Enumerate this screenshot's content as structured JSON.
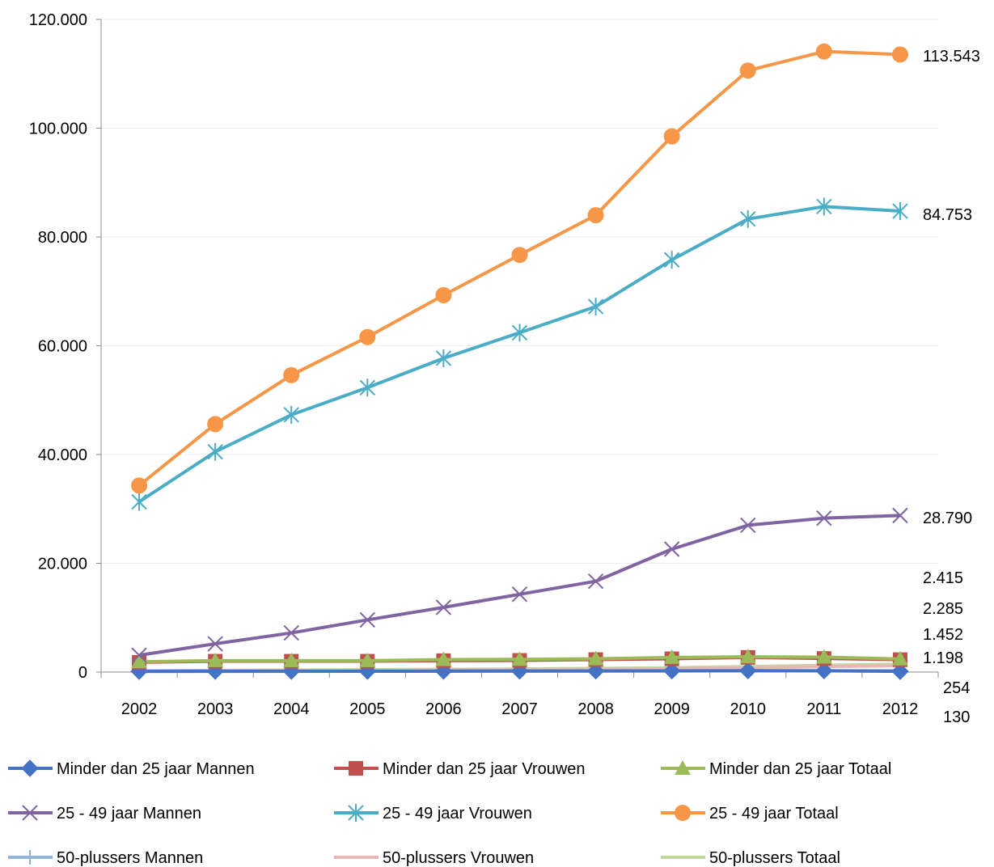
{
  "chart_data": {
    "type": "line",
    "title": "",
    "xlabel": "",
    "ylabel": "",
    "categories": [
      "2002",
      "2003",
      "2004",
      "2005",
      "2006",
      "2007",
      "2008",
      "2009",
      "2010",
      "2011",
      "2012"
    ],
    "ylim": [
      0,
      120000
    ],
    "yticks": [
      0,
      20000,
      40000,
      60000,
      80000,
      100000,
      120000
    ],
    "ytick_labels": [
      "0",
      "20.000",
      "40.000",
      "60.000",
      "80.000",
      "100.000",
      "120.000"
    ],
    "grid": true,
    "legend_position": "bottom",
    "series": [
      {
        "name": "Minder dan 25 jaar Mannen",
        "color": "#4472C4",
        "marker": "diamond",
        "values": [
          150,
          160,
          170,
          170,
          180,
          200,
          210,
          230,
          260,
          250,
          130
        ]
      },
      {
        "name": "Minder dan 25 jaar Vrouwen",
        "color": "#C0504D",
        "marker": "square",
        "values": [
          1800,
          2000,
          2000,
          2000,
          2100,
          2150,
          2300,
          2450,
          2700,
          2500,
          2285
        ]
      },
      {
        "name": "Minder dan 25 jaar Totaal",
        "color": "#9BBB59",
        "marker": "triangle",
        "values": [
          1900,
          2100,
          2100,
          2100,
          2300,
          2350,
          2450,
          2700,
          2800,
          2750,
          2415
        ]
      },
      {
        "name": "25 - 49 jaar Mannen",
        "color": "#8064A2",
        "marker": "x",
        "values": [
          3100,
          5200,
          7200,
          9600,
          11900,
          14300,
          16700,
          22600,
          27000,
          28300,
          28790
        ]
      },
      {
        "name": "25 - 49 jaar Vrouwen",
        "color": "#4BACC6",
        "marker": "star",
        "values": [
          31300,
          40500,
          47300,
          52300,
          57700,
          62400,
          67200,
          75800,
          83300,
          85600,
          84753
        ]
      },
      {
        "name": "25 - 49 jaar Totaal",
        "color": "#F79646",
        "marker": "circle",
        "values": [
          34300,
          45600,
          54600,
          61600,
          69300,
          76700,
          84000,
          98500,
          110600,
          114100,
          113543
        ]
      },
      {
        "name": "50-plussers Mannen",
        "color": "#95B3D7",
        "marker": "plus",
        "values": [
          100,
          120,
          130,
          140,
          150,
          170,
          180,
          200,
          230,
          240,
          254
        ]
      },
      {
        "name": "50-plussers Vrouwen",
        "color": "#E6B9B8",
        "marker": "dash",
        "values": [
          150,
          200,
          250,
          300,
          350,
          400,
          500,
          600,
          800,
          1000,
          1198
        ]
      },
      {
        "name": "50-plussers Totaal",
        "color": "#C3D69B",
        "marker": "none",
        "values": [
          250,
          320,
          380,
          440,
          500,
          570,
          680,
          800,
          1030,
          1240,
          1452
        ]
      }
    ],
    "end_labels": [
      "113.543",
      "84.753",
      "28.790",
      "2.415",
      "2.285",
      "1.452",
      "1.198",
      "254",
      "130"
    ]
  }
}
